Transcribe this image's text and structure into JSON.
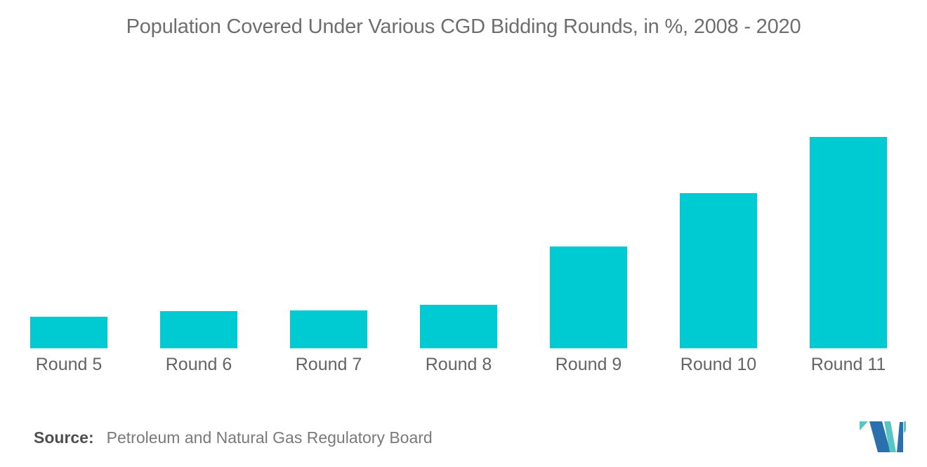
{
  "title": "Population Covered Under Various CGD Bidding Rounds, in %, 2008 - 2020",
  "source": {
    "label": "Source:",
    "text": "Petroleum and Natural Gas Regulatory Board"
  },
  "colors": {
    "bar": "#00cbd3",
    "title_text": "#6e6e6e",
    "label_text": "#646464",
    "source_label": "#4f4f4f",
    "source_text": "#7a7a7a",
    "logo_blue": "#2b70ae",
    "logo_teal": "#55c6c2"
  },
  "chart_data": {
    "type": "bar",
    "categories": [
      "Round 5",
      "Round 6",
      "Round 7",
      "Round 8",
      "Round 9",
      "Round 10",
      "Round 11"
    ],
    "values": [
      4.5,
      5.3,
      5.4,
      6.2,
      14.5,
      22.1,
      30.1
    ],
    "title": "Population Covered Under Various CGD Bidding Rounds, in %, 2008 - 2020",
    "xlabel": "",
    "ylabel": "",
    "ylim": [
      0,
      33
    ],
    "grid": false,
    "legend": false,
    "axes_visible": false,
    "bar_color": "#00cbd3"
  }
}
